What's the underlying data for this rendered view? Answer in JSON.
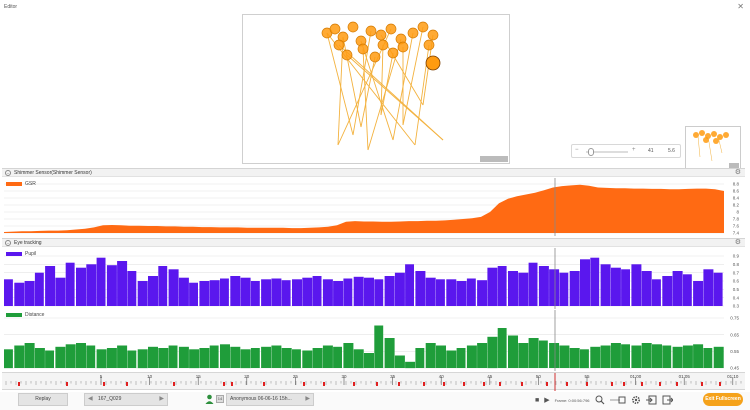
{
  "window": {
    "title": "Editor",
    "close_glyph": "✕"
  },
  "stimulus": {
    "frame_tag": "",
    "zoom": {
      "minus": "−",
      "plus": "+",
      "value": "41",
      "value2": "5.6"
    }
  },
  "shimmer_section": {
    "title": "Shimmer Sensor(Shimmer Sensor)",
    "collapse_glyph": "–",
    "gear_glyph": "⚙"
  },
  "eye_section": {
    "title": "Eye tracking",
    "collapse_glyph": "–",
    "gear_glyph": "⚙"
  },
  "colors": {
    "gsr": "#ff6a13",
    "pupil": "#5a17ee",
    "distance": "#1f9d3a",
    "accent": "#f5a21b",
    "cursor": "#888888",
    "event_marker": "#e02020"
  },
  "chart_data": [
    {
      "type": "area",
      "series": [
        {
          "name": "GSR",
          "values": [
            7.43,
            7.44,
            7.45,
            7.45,
            7.46,
            7.47,
            7.47,
            7.48,
            7.5,
            7.52,
            7.56,
            7.62,
            7.63,
            7.62,
            7.61,
            7.61,
            7.6,
            7.6,
            7.59,
            7.59,
            7.58,
            7.58,
            7.57,
            7.57,
            7.56,
            7.56,
            7.56,
            7.55,
            7.55,
            7.55,
            7.55,
            7.55,
            7.54,
            7.54,
            7.55,
            7.56,
            7.58,
            7.62,
            7.72,
            7.74,
            7.73,
            7.73,
            7.72,
            7.72,
            7.73,
            7.74,
            7.74,
            7.75,
            7.75,
            7.76,
            7.78,
            7.8,
            7.82,
            7.86,
            8.0,
            8.25,
            8.38,
            8.45,
            8.5,
            8.55,
            8.62,
            8.7,
            8.74,
            8.76,
            8.78,
            8.75,
            8.7,
            8.69,
            8.68,
            8.68,
            8.67,
            8.67,
            8.66,
            8.66,
            8.65,
            8.65,
            8.66,
            8.67,
            8.67,
            8.65,
            8.6
          ]
        }
      ],
      "ylim": [
        7.4,
        8.8
      ],
      "yticks": [
        "8.8",
        "8.6",
        "8.4",
        "8.2",
        "8",
        "7.8",
        "7.6",
        "7.4"
      ]
    },
    {
      "type": "bar",
      "series": [
        {
          "name": "Pupil",
          "values": [
            0.62,
            0.58,
            0.6,
            0.7,
            0.78,
            0.64,
            0.82,
            0.76,
            0.8,
            0.88,
            0.79,
            0.84,
            0.72,
            0.6,
            0.66,
            0.78,
            0.74,
            0.64,
            0.58,
            0.6,
            0.61,
            0.63,
            0.66,
            0.64,
            0.6,
            0.62,
            0.63,
            0.61,
            0.62,
            0.64,
            0.66,
            0.62,
            0.6,
            0.63,
            0.65,
            0.64,
            0.62,
            0.66,
            0.7,
            0.8,
            0.72,
            0.64,
            0.62,
            0.62,
            0.6,
            0.63,
            0.61,
            0.76,
            0.78,
            0.72,
            0.7,
            0.82,
            0.78,
            0.74,
            0.7,
            0.72,
            0.86,
            0.88,
            0.8,
            0.76,
            0.74,
            0.8,
            0.72,
            0.62,
            0.66,
            0.72,
            0.68,
            0.6,
            0.74,
            0.7
          ]
        }
      ],
      "ylim": [
        0.3,
        0.9
      ],
      "yticks": [
        "0.9",
        "0.8",
        "0.7",
        "0.6",
        "0.5",
        "0.4",
        "0.3"
      ]
    },
    {
      "type": "bar",
      "series": [
        {
          "name": "Distance",
          "values": [
            0.55,
            0.58,
            0.6,
            0.56,
            0.54,
            0.57,
            0.59,
            0.6,
            0.58,
            0.55,
            0.56,
            0.58,
            0.54,
            0.55,
            0.57,
            0.56,
            0.58,
            0.57,
            0.55,
            0.56,
            0.58,
            0.59,
            0.57,
            0.55,
            0.56,
            0.57,
            0.58,
            0.56,
            0.55,
            0.54,
            0.56,
            0.58,
            0.57,
            0.6,
            0.55,
            0.52,
            0.74,
            0.64,
            0.5,
            0.45,
            0.56,
            0.6,
            0.58,
            0.54,
            0.56,
            0.58,
            0.6,
            0.65,
            0.72,
            0.66,
            0.6,
            0.64,
            0.62,
            0.6,
            0.58,
            0.56,
            0.55,
            0.57,
            0.58,
            0.6,
            0.59,
            0.58,
            0.6,
            0.59,
            0.58,
            0.57,
            0.58,
            0.59,
            0.56,
            0.57
          ]
        }
      ],
      "ylim": [
        0.4,
        0.8
      ],
      "yticks": [
        "0.75",
        "0.65",
        "0.55",
        "0.45"
      ]
    }
  ],
  "timeline": {
    "labels": [
      "5",
      "10",
      "15",
      "20",
      "25",
      "30",
      "35",
      "40",
      "45",
      "50",
      "55",
      "01:00",
      "01:05",
      "01:10"
    ],
    "markers": [
      17,
      65,
      102,
      125,
      172,
      222,
      230,
      262,
      302,
      322,
      352,
      375,
      397,
      422,
      442,
      462,
      482,
      498,
      520,
      545,
      565,
      585,
      610,
      622,
      640,
      658,
      675,
      700,
      718
    ]
  },
  "bottombar": {
    "replay_label": "Replay",
    "recording_label": "167_Q029",
    "prev_glyph": "◀",
    "next_glyph": "▶",
    "respondent_badge": "14",
    "respondent_label": "Anonymous 06-06-16 15h...",
    "stop_glyph": "■",
    "play_glyph": "▶",
    "frame_label": "Frame: 0:00:56:796",
    "fullscreen_label": "Exit Fullscreen"
  }
}
